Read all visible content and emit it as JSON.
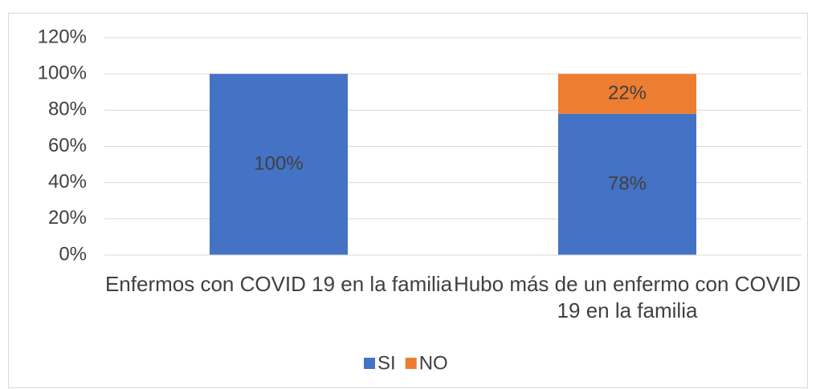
{
  "chart_data": {
    "type": "stacked_bar",
    "categories": [
      "Enfermos con COVID 19 en la familia",
      "Hubo más de un enfermo con COVID 19 en la familia"
    ],
    "series": [
      {
        "name": "SI",
        "color": "#4472c4",
        "values": [
          100,
          78
        ],
        "value_labels": [
          "100%",
          "78%"
        ]
      },
      {
        "name": "NO",
        "color": "#ed7d31",
        "values": [
          0,
          22
        ],
        "value_labels": [
          null,
          "22%"
        ]
      }
    ],
    "ylim": [
      0,
      120
    ],
    "yticks": [
      {
        "value": 0,
        "label": "0%"
      },
      {
        "value": 20,
        "label": "20%"
      },
      {
        "value": 40,
        "label": "40%"
      },
      {
        "value": 60,
        "label": "60%"
      },
      {
        "value": 80,
        "label": "80%"
      },
      {
        "value": 100,
        "label": "100%"
      },
      {
        "value": 120,
        "label": "120%"
      }
    ],
    "grid": true,
    "legend": "bottom"
  }
}
